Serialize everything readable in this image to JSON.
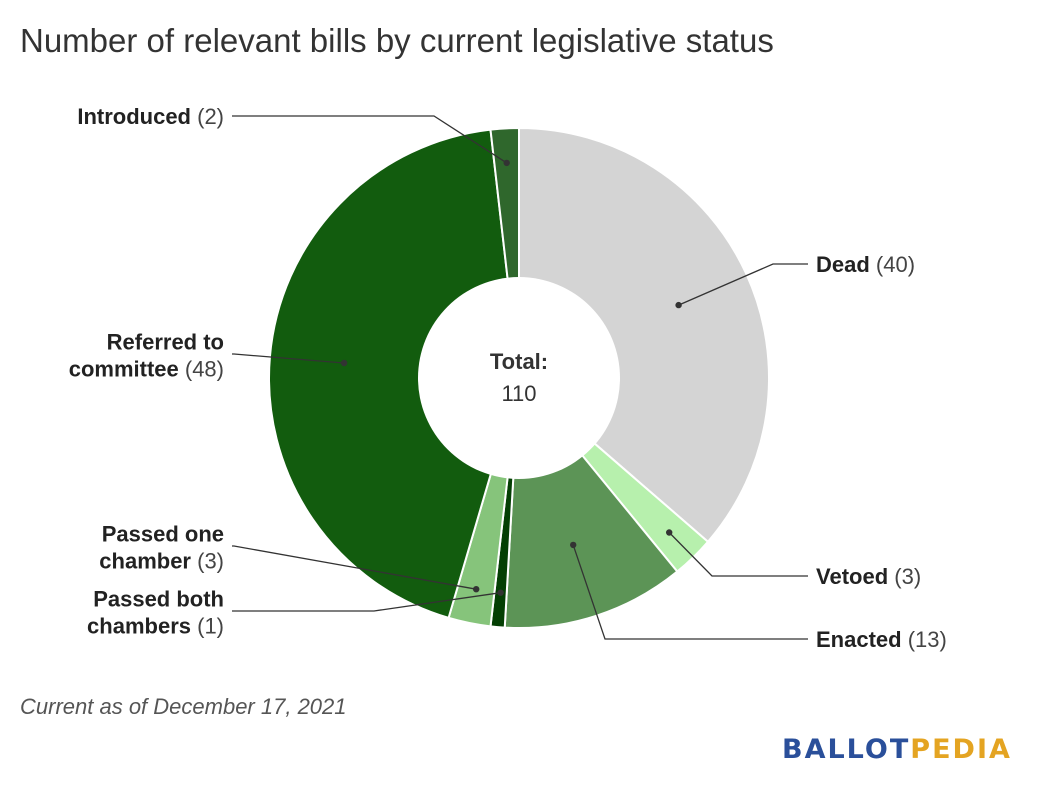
{
  "title": "Number of relevant bills by current legislative status",
  "footnote": "Current as of December 17, 2021",
  "logo": {
    "part1": "BALLOT",
    "part2": "PEDIA",
    "color1": "#2a4f9a",
    "color2": "#e4a422"
  },
  "chart_data": {
    "type": "pie",
    "variant": "donut",
    "center_label": "Total:",
    "center_value": "110",
    "slices": [
      {
        "label": "Dead",
        "value": 40,
        "color": "#d4d4d4",
        "label_lines": [
          "Dead"
        ]
      },
      {
        "label": "Vetoed",
        "value": 3,
        "color": "#b7f0ad",
        "label_lines": [
          "Vetoed"
        ]
      },
      {
        "label": "Enacted",
        "value": 13,
        "color": "#5c9456",
        "label_lines": [
          "Enacted"
        ]
      },
      {
        "label": "Passed both chambers",
        "value": 1,
        "color": "#043f04",
        "label_lines": [
          "Passed both",
          "chambers"
        ]
      },
      {
        "label": "Passed one chamber",
        "value": 3,
        "color": "#86c47b",
        "label_lines": [
          "Passed one",
          "chamber"
        ]
      },
      {
        "label": "Referred to committee",
        "value": 48,
        "color": "#125c0e",
        "label_lines": [
          "Referred to",
          "committee"
        ]
      },
      {
        "label": "Introduced",
        "value": 2,
        "color": "#2f672c",
        "label_lines": [
          "Introduced"
        ]
      }
    ]
  }
}
